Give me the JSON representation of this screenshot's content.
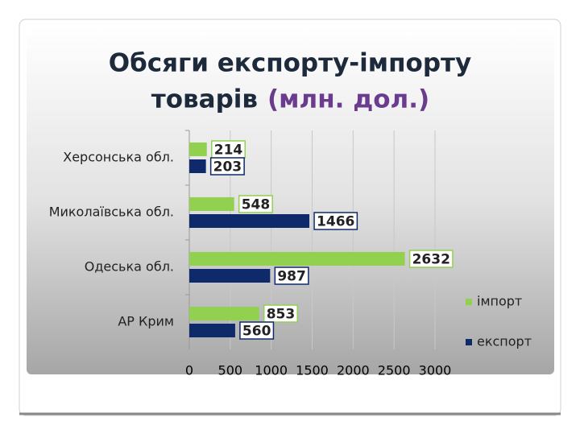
{
  "chart_data": {
    "type": "bar",
    "orientation": "horizontal",
    "title_parts": [
      "Обсяги експорту-імпорту",
      "товарів",
      "(млн. дол.)"
    ],
    "categories": [
      "Херсонська обл.",
      "Миколаївська обл.",
      "Одеська обл.",
      "АР Крим"
    ],
    "series": [
      {
        "name": "імпорт",
        "color": "#92d050",
        "values": [
          214,
          548,
          2632,
          853
        ]
      },
      {
        "name": "експорт",
        "color": "#0f2a6b",
        "values": [
          203,
          1466,
          987,
          560
        ]
      }
    ],
    "xlim": [
      0,
      3000
    ],
    "xticks": [
      0,
      500,
      1000,
      1500,
      2000,
      2500,
      3000
    ],
    "grid": true,
    "legend": "right"
  }
}
